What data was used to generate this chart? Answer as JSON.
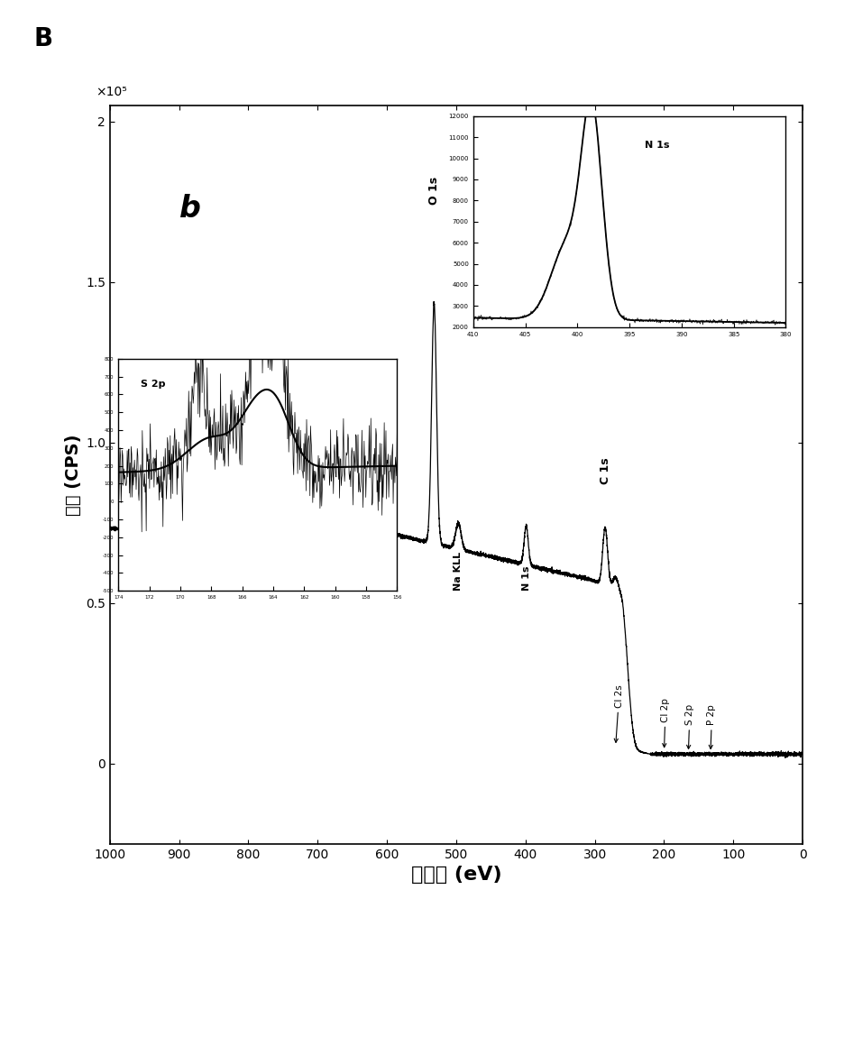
{
  "title_letter": "B",
  "subplot_letter": "b",
  "xlabel": "结合能 (eV)",
  "ylabel": "强度 (CPS)",
  "xlim": [
    1000,
    0
  ],
  "ylim": [
    -25000.0,
    205000.0
  ],
  "yticks": [
    0,
    50000,
    100000,
    150000,
    200000
  ],
  "ytick_labels": [
    "0",
    "0.5",
    "1.0",
    "1.5",
    "2"
  ],
  "xticks": [
    0,
    100,
    200,
    300,
    400,
    500,
    600,
    700,
    800,
    900,
    1000
  ],
  "scale_label": "×10⁵",
  "background_color": "#ffffff",
  "line_color": "#000000"
}
